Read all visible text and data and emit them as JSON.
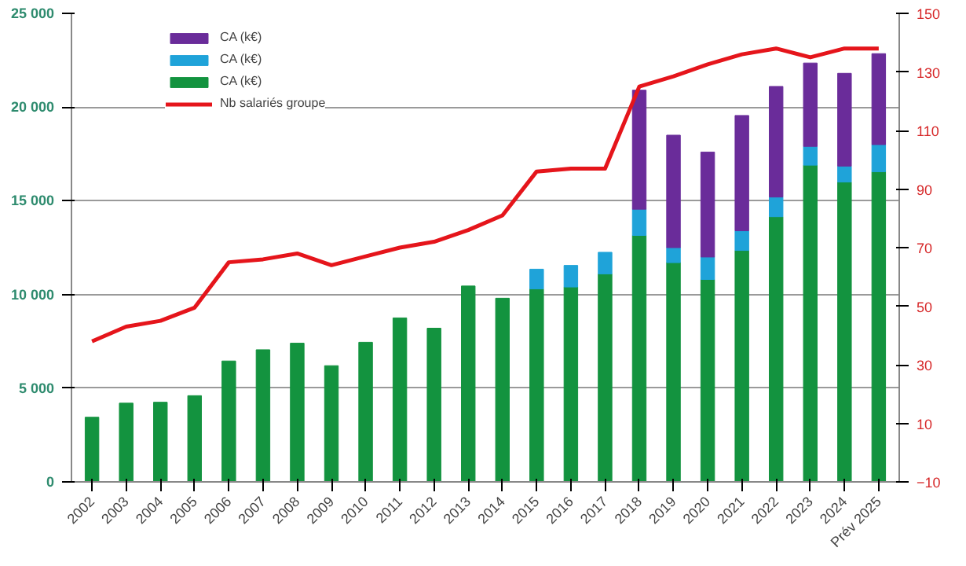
{
  "chart_data": {
    "type": "bar",
    "stacked": true,
    "categories": [
      "2002",
      "2003",
      "2004",
      "2005",
      "2006",
      "2007",
      "2008",
      "2009",
      "2010",
      "2011",
      "2012",
      "2013",
      "2014",
      "2015",
      "2016",
      "2017",
      "2018",
      "2019",
      "2020",
      "2021",
      "2022",
      "2023",
      "2024",
      "Prév 2025"
    ],
    "series": [
      {
        "name": "CA (k€)",
        "color": "#13933f",
        "values": [
          3450,
          4200,
          4250,
          4600,
          6450,
          7050,
          7400,
          6200,
          7450,
          8750,
          8200,
          10450,
          9800,
          10300,
          10400,
          11100,
          13150,
          11700,
          10800,
          12350,
          14150,
          16900,
          16000,
          16550
        ]
      },
      {
        "name": "CA (k€)",
        "color": "#1fa3d9",
        "values": [
          null,
          null,
          null,
          null,
          null,
          null,
          null,
          null,
          null,
          null,
          null,
          null,
          null,
          1050,
          1150,
          1150,
          1400,
          800,
          1200,
          1050,
          1050,
          1000,
          850,
          1450
        ]
      },
      {
        "name": "CA (k€)",
        "color": "#6a2c9a",
        "values": [
          null,
          null,
          null,
          null,
          null,
          null,
          null,
          null,
          null,
          null,
          null,
          null,
          null,
          null,
          null,
          null,
          6350,
          6000,
          5600,
          6150,
          5900,
          4450,
          4950,
          4850
        ]
      },
      {
        "name": "Nb salariés groupe",
        "type": "line",
        "axis": "y2",
        "color": "#e5151b",
        "values": [
          38,
          43,
          45,
          49.5,
          65,
          66,
          68,
          64,
          67,
          70,
          72,
          76,
          81,
          96,
          97,
          97,
          125,
          128.5,
          132.6,
          136,
          138,
          135,
          138,
          138
        ]
      }
    ],
    "ylim": [
      0,
      25000
    ],
    "yticks": [
      {
        "value": 0,
        "label": "0"
      },
      {
        "value": 5000,
        "label": "5 000"
      },
      {
        "value": 10000,
        "label": "10 000"
      },
      {
        "value": 15000,
        "label": "15 000"
      },
      {
        "value": 20000,
        "label": "20 000"
      },
      {
        "value": 25000,
        "label": "25 000"
      }
    ],
    "y2lim": [
      -10,
      150
    ],
    "y2ticks": [
      -10,
      10,
      30,
      50,
      70,
      90,
      110,
      130,
      150
    ],
    "grid": "y",
    "legend": "top left"
  }
}
